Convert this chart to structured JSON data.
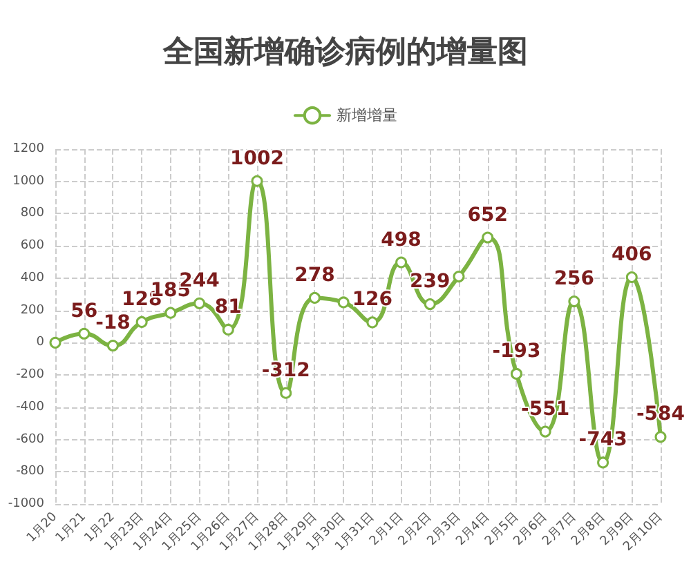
{
  "chart_data": {
    "type": "line",
    "title": "全国新增确诊病例的增量图",
    "categories": [
      "1月20",
      "1月21",
      "1月22",
      "1月23日",
      "1月24日",
      "1月25日",
      "1月26日",
      "1月27日",
      "1月28日",
      "1月29日",
      "1月30日",
      "1月31日",
      "2月1日",
      "2月2日",
      "2月3日",
      "2月4日",
      "2月5日",
      "2月6日",
      "2月7日",
      "2月8日",
      "2月9日",
      "2月10日"
    ],
    "series": [
      {
        "name": "新增增量",
        "color": "#7cb342",
        "values": [
          0,
          56,
          -18,
          128,
          185,
          244,
          81,
          1002,
          -312,
          278,
          250,
          126,
          498,
          239,
          410,
          652,
          -193,
          -551,
          256,
          -743,
          406,
          -584
        ],
        "value_labels": [
          null,
          "56",
          "-18",
          "128",
          "185",
          "244",
          "81",
          "1002",
          "-312",
          "278",
          null,
          "126",
          "498",
          "239",
          null,
          "652",
          "-193",
          "-551",
          "256",
          "-743",
          "406",
          "-584"
        ]
      }
    ],
    "ylim": [
      -1000,
      1200
    ],
    "yticks": [
      -1000,
      -800,
      -600,
      -400,
      -200,
      0,
      200,
      400,
      600,
      800,
      1000,
      1200
    ],
    "grid": true,
    "legend": "top",
    "marker": "circle",
    "line_style": "solid"
  }
}
